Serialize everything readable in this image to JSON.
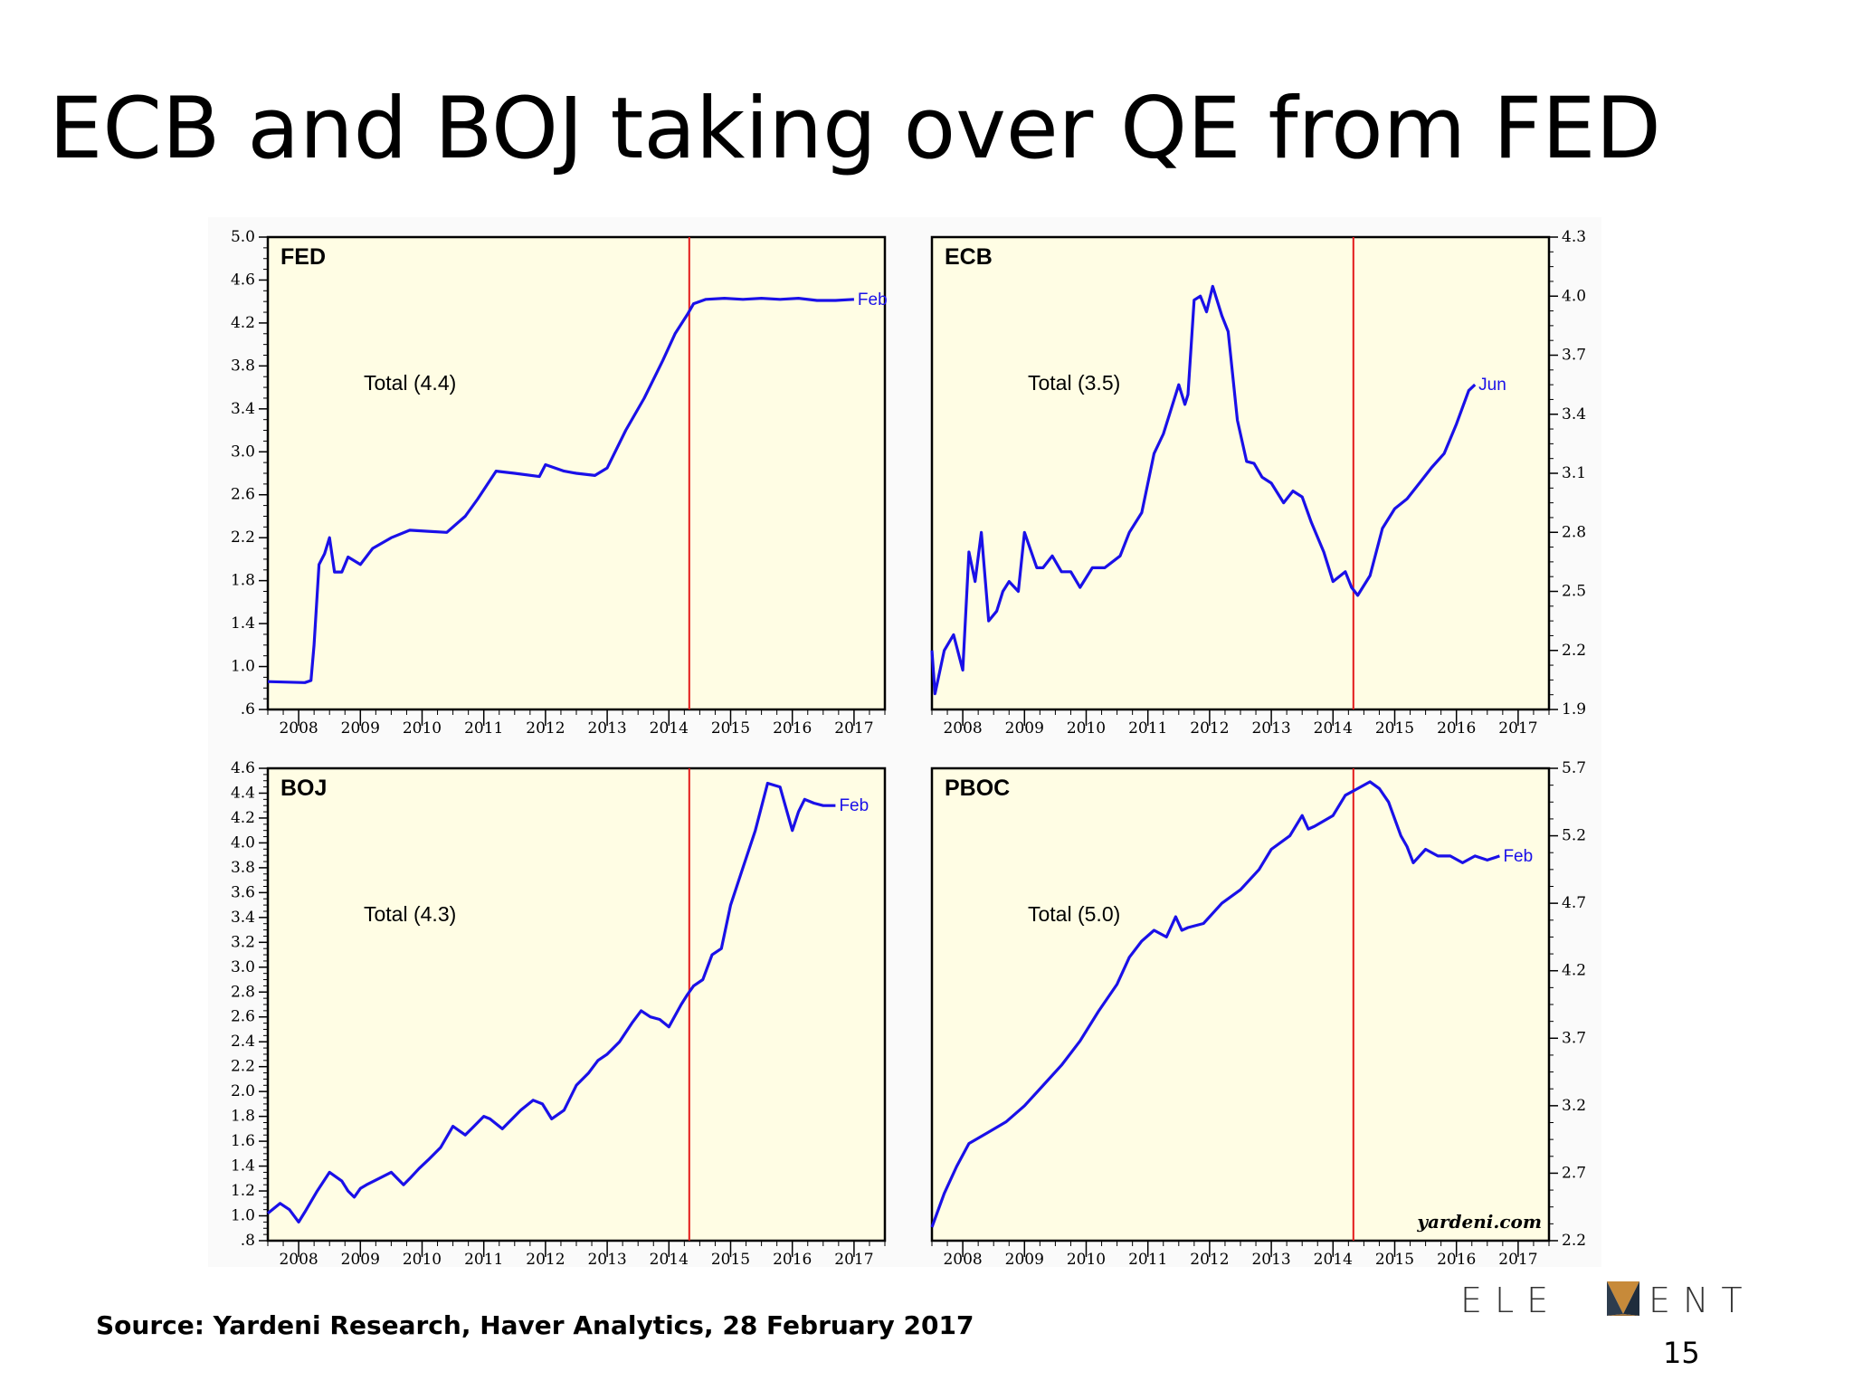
{
  "slide": {
    "title": "ECB and BOJ taking over QE from FED",
    "source": "Source: Yardeni Research, Haver Analytics, 28 February 2017",
    "page_number": "15",
    "logo": {
      "text_left": "ELE",
      "text_right": "ENT"
    },
    "watermark": "yardeni.com",
    "colors": {
      "line": "#1a10e8",
      "marker_line": "#e31b1b",
      "plot_bg": "#fffde4",
      "axis": "#000000"
    }
  },
  "chart_data": [
    {
      "type": "line",
      "title": "FED",
      "annotation": "Total (4.4)",
      "end_label": "Feb",
      "x_ticks": [
        "2008",
        "2009",
        "2010",
        "2011",
        "2012",
        "2013",
        "2014",
        "2015",
        "2016",
        "2017"
      ],
      "xlim": [
        2007.5,
        2017.5
      ],
      "y_ticks": [
        ".6",
        "1.0",
        "1.4",
        "1.8",
        "2.2",
        "2.6",
        "3.0",
        "3.4",
        "3.8",
        "4.2",
        "4.6",
        "5.0"
      ],
      "ylim": [
        0.6,
        5.0
      ],
      "y_axis_side": "left",
      "vertical_marker_x": 2014.33,
      "series": [
        {
          "x": [
            2007.5,
            2008.1,
            2008.2,
            2008.25,
            2008.33,
            2008.42,
            2008.5,
            2008.58,
            2008.7,
            2008.8,
            2009.0,
            2009.2,
            2009.5,
            2009.8,
            2010.1,
            2010.4,
            2010.7,
            2010.9,
            2011.2,
            2011.5,
            2011.9,
            2012.0,
            2012.3,
            2012.5,
            2012.8,
            2013.0,
            2013.3,
            2013.6,
            2013.9,
            2014.1,
            2014.3,
            2014.4,
            2014.6,
            2014.9,
            2015.2,
            2015.5,
            2015.8,
            2016.1,
            2016.4,
            2016.7,
            2017.0
          ],
          "y": [
            0.86,
            0.85,
            0.87,
            1.2,
            1.95,
            2.05,
            2.2,
            1.88,
            1.88,
            2.02,
            1.95,
            2.1,
            2.2,
            2.27,
            2.26,
            2.25,
            2.4,
            2.56,
            2.82,
            2.8,
            2.77,
            2.88,
            2.82,
            2.8,
            2.78,
            2.85,
            3.2,
            3.5,
            3.85,
            4.1,
            4.28,
            4.38,
            4.42,
            4.43,
            4.42,
            4.43,
            4.42,
            4.43,
            4.41,
            4.41,
            4.42
          ]
        }
      ]
    },
    {
      "type": "line",
      "title": "ECB",
      "annotation": "Total (3.5)",
      "end_label": "Jun",
      "x_ticks": [
        "2008",
        "2009",
        "2010",
        "2011",
        "2012",
        "2013",
        "2014",
        "2015",
        "2016",
        "2017"
      ],
      "xlim": [
        2007.5,
        2017.5
      ],
      "y_ticks": [
        "1.9",
        "2.2",
        "2.5",
        "2.8",
        "3.1",
        "3.4",
        "3.7",
        "4.0",
        "4.3"
      ],
      "ylim": [
        1.9,
        4.3
      ],
      "y_axis_side": "right",
      "vertical_marker_x": 2014.33,
      "series": [
        {
          "x": [
            2007.5,
            2007.55,
            2007.7,
            2007.85,
            2008.0,
            2008.1,
            2008.2,
            2008.3,
            2008.42,
            2008.55,
            2008.65,
            2008.75,
            2008.9,
            2009.0,
            2009.2,
            2009.3,
            2009.45,
            2009.6,
            2009.75,
            2009.9,
            2010.1,
            2010.3,
            2010.55,
            2010.7,
            2010.9,
            2011.1,
            2011.25,
            2011.5,
            2011.6,
            2011.65,
            2011.75,
            2011.85,
            2011.95,
            2012.05,
            2012.2,
            2012.3,
            2012.45,
            2012.6,
            2012.72,
            2012.85,
            2013.0,
            2013.2,
            2013.35,
            2013.5,
            2013.65,
            2013.85,
            2014.0,
            2014.2,
            2014.3,
            2014.4,
            2014.6,
            2014.8,
            2015.0,
            2015.2,
            2015.4,
            2015.6,
            2015.8,
            2016.0,
            2016.2,
            2016.3
          ],
          "y": [
            2.2,
            1.98,
            2.2,
            2.28,
            2.1,
            2.7,
            2.55,
            2.8,
            2.35,
            2.4,
            2.5,
            2.55,
            2.5,
            2.8,
            2.62,
            2.62,
            2.68,
            2.6,
            2.6,
            2.52,
            2.62,
            2.62,
            2.68,
            2.8,
            2.9,
            3.2,
            3.3,
            3.55,
            3.45,
            3.5,
            3.98,
            4.0,
            3.92,
            4.05,
            3.9,
            3.82,
            3.37,
            3.16,
            3.15,
            3.08,
            3.05,
            2.95,
            3.01,
            2.98,
            2.85,
            2.7,
            2.55,
            2.6,
            2.52,
            2.48,
            2.58,
            2.82,
            2.92,
            2.97,
            3.05,
            3.13,
            3.2,
            3.35,
            3.52,
            3.55
          ]
        }
      ]
    },
    {
      "type": "line",
      "title": "BOJ",
      "annotation": "Total (4.3)",
      "end_label": "Feb",
      "x_ticks": [
        "2008",
        "2009",
        "2010",
        "2011",
        "2012",
        "2013",
        "2014",
        "2015",
        "2016",
        "2017"
      ],
      "xlim": [
        2007.5,
        2017.5
      ],
      "y_ticks": [
        ".8",
        "1.0",
        "1.2",
        "1.4",
        "1.6",
        "1.8",
        "2.0",
        "2.2",
        "2.4",
        "2.6",
        "2.8",
        "3.0",
        "3.2",
        "3.4",
        "3.6",
        "3.8",
        "4.0",
        "4.2",
        "4.4",
        "4.6"
      ],
      "ylim": [
        0.8,
        4.6
      ],
      "y_axis_side": "left",
      "vertical_marker_x": 2014.33,
      "series": [
        {
          "x": [
            2007.5,
            2007.7,
            2007.85,
            2008.0,
            2008.1,
            2008.3,
            2008.5,
            2008.7,
            2008.8,
            2008.9,
            2009.0,
            2009.1,
            2009.3,
            2009.5,
            2009.7,
            2009.8,
            2009.95,
            2010.1,
            2010.3,
            2010.5,
            2010.7,
            2010.8,
            2011.0,
            2011.1,
            2011.3,
            2011.5,
            2011.6,
            2011.8,
            2011.95,
            2012.1,
            2012.3,
            2012.5,
            2012.7,
            2012.85,
            2013.0,
            2013.2,
            2013.4,
            2013.55,
            2013.7,
            2013.85,
            2014.0,
            2014.2,
            2014.3,
            2014.4,
            2014.55,
            2014.7,
            2014.85,
            2015.0,
            2015.2,
            2015.4,
            2015.6,
            2015.8,
            2016.0,
            2016.1,
            2016.2,
            2016.35,
            2016.5,
            2016.6,
            2016.7
          ],
          "y": [
            1.02,
            1.1,
            1.05,
            0.95,
            1.03,
            1.2,
            1.35,
            1.28,
            1.2,
            1.15,
            1.22,
            1.25,
            1.3,
            1.35,
            1.25,
            1.3,
            1.38,
            1.45,
            1.55,
            1.72,
            1.65,
            1.7,
            1.8,
            1.78,
            1.7,
            1.8,
            1.85,
            1.93,
            1.9,
            1.78,
            1.85,
            2.05,
            2.15,
            2.25,
            2.3,
            2.4,
            2.55,
            2.65,
            2.6,
            2.58,
            2.52,
            2.7,
            2.78,
            2.85,
            2.9,
            3.1,
            3.15,
            3.5,
            3.8,
            4.1,
            4.48,
            4.45,
            4.1,
            4.25,
            4.35,
            4.32,
            4.3,
            4.3,
            4.3
          ]
        }
      ]
    },
    {
      "type": "line",
      "title": "PBOC",
      "annotation": "Total (5.0)",
      "end_label": "Feb",
      "x_ticks": [
        "2008",
        "2009",
        "2010",
        "2011",
        "2012",
        "2013",
        "2014",
        "2015",
        "2016",
        "2017"
      ],
      "xlim": [
        2007.5,
        2017.5
      ],
      "y_ticks": [
        "2.2",
        "2.7",
        "3.2",
        "3.7",
        "4.2",
        "4.7",
        "5.2",
        "5.7"
      ],
      "ylim": [
        2.2,
        5.7
      ],
      "y_axis_side": "right",
      "vertical_marker_x": 2014.33,
      "series": [
        {
          "x": [
            2007.5,
            2007.7,
            2007.9,
            2008.1,
            2008.4,
            2008.7,
            2009.0,
            2009.3,
            2009.6,
            2009.9,
            2010.2,
            2010.5,
            2010.7,
            2010.9,
            2011.1,
            2011.3,
            2011.45,
            2011.55,
            2011.65,
            2011.9,
            2012.2,
            2012.5,
            2012.8,
            2013.0,
            2013.3,
            2013.5,
            2013.6,
            2013.7,
            2014.0,
            2014.2,
            2014.4,
            2014.6,
            2014.75,
            2014.9,
            2015.1,
            2015.2,
            2015.3,
            2015.5,
            2015.7,
            2015.9,
            2016.1,
            2016.3,
            2016.5,
            2016.7
          ],
          "y": [
            2.3,
            2.55,
            2.75,
            2.92,
            3.0,
            3.08,
            3.2,
            3.35,
            3.5,
            3.68,
            3.9,
            4.1,
            4.3,
            4.42,
            4.5,
            4.45,
            4.6,
            4.5,
            4.52,
            4.55,
            4.7,
            4.8,
            4.95,
            5.1,
            5.2,
            5.35,
            5.25,
            5.27,
            5.35,
            5.5,
            5.55,
            5.6,
            5.55,
            5.45,
            5.2,
            5.12,
            5.0,
            5.1,
            5.05,
            5.05,
            5.0,
            5.05,
            5.02,
            5.05
          ]
        }
      ]
    }
  ]
}
